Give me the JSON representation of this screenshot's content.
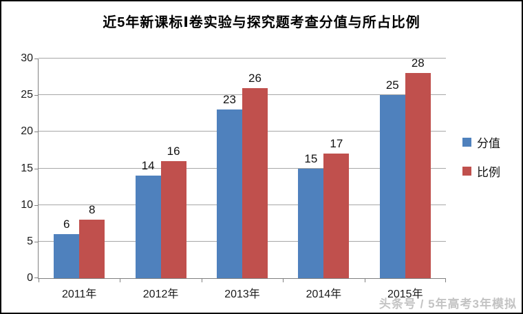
{
  "chart_data": {
    "type": "bar",
    "title": "近5年新课标Ⅰ卷实验与探究题考查分值与所占比例",
    "categories": [
      "2011年",
      "2012年",
      "2013年",
      "2014年",
      "2015年"
    ],
    "series": [
      {
        "name": "分值",
        "color": "#4F81BD",
        "values": [
          6,
          14,
          23,
          15,
          25
        ]
      },
      {
        "name": "比例",
        "color": "#C0504D",
        "values": [
          8,
          16,
          26,
          17,
          28
        ]
      }
    ],
    "xlabel": "",
    "ylabel": "",
    "ylim": [
      0,
      30
    ],
    "yticks": [
      0,
      5,
      10,
      15,
      20,
      25,
      30
    ],
    "grid": "horizontal",
    "gridline_color": "#a6a6a6",
    "axis_color": "#808080",
    "legend_position": "right",
    "data_labels": true
  },
  "watermark": "头条号 / 5年高考3年模拟"
}
